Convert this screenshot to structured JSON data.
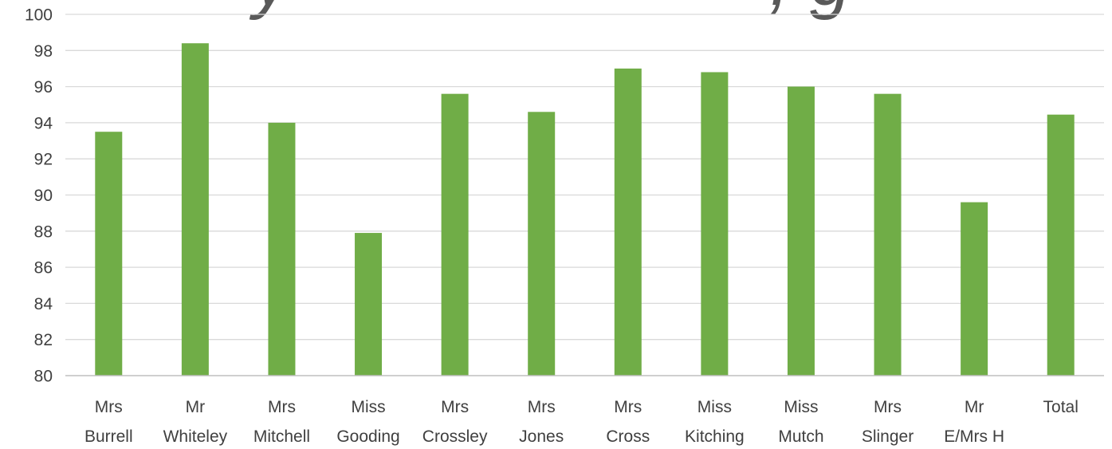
{
  "chart_data": {
    "type": "bar",
    "title": "",
    "xlabel": "",
    "ylabel": "",
    "ylim": [
      80,
      100
    ],
    "ytick_step": 2,
    "grid": true,
    "legend": "none",
    "colors": {
      "bar": "#70AD47",
      "grid": "#D9D9D9",
      "axis": "#BFBFBF",
      "text": "#404040"
    },
    "categories": [
      [
        "Mrs",
        "Burrell"
      ],
      [
        "Mr",
        "Whiteley"
      ],
      [
        "Mrs",
        "Mitchell"
      ],
      [
        "Miss",
        "Gooding"
      ],
      [
        "Mrs",
        "Crossley"
      ],
      [
        "Mrs",
        "Jones"
      ],
      [
        "Mrs",
        "Cross"
      ],
      [
        "Miss",
        "Kitching"
      ],
      [
        "Miss",
        "Mutch"
      ],
      [
        "Mrs",
        "Slinger"
      ],
      [
        "Mr",
        "E/Mrs H"
      ],
      [
        "Total"
      ]
    ],
    "values": [
      93.5,
      98.4,
      94.0,
      87.9,
      95.6,
      94.6,
      97.0,
      96.8,
      96.0,
      95.6,
      89.6,
      94.45
    ]
  }
}
